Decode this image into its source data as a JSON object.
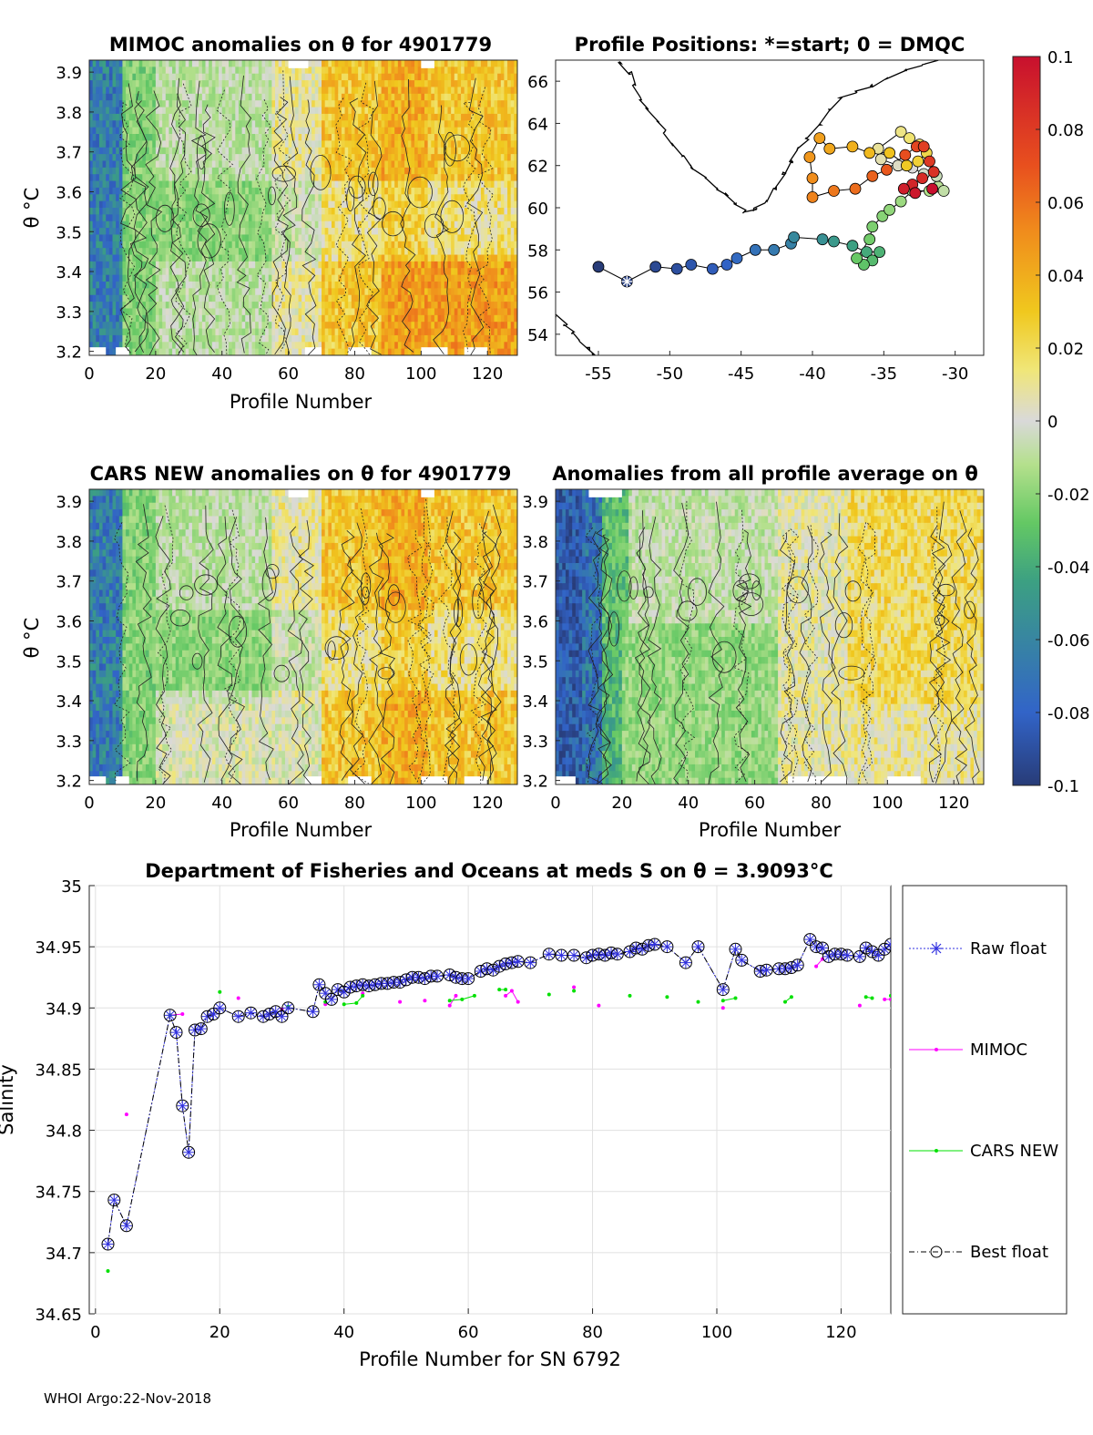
{
  "footer": "WHOI Argo:22-Nov-2018",
  "colormap_ticks": [
    "0.1",
    "0.08",
    "0.06",
    "0.04",
    "0.02",
    "0",
    "-0.02",
    "-0.04",
    "-0.06",
    "-0.08",
    "-0.1"
  ],
  "colors": {
    "high": "#c8102e",
    "orange": "#f08c1c",
    "yellow": "#f0c81e",
    "gray": "#d9d9d9",
    "green": "#64c864",
    "blue": "#3264c8",
    "deep": "#283c78"
  },
  "chart_data": [
    {
      "id": "mimoc_anom",
      "type": "heatmap",
      "title": "MIMOC anomalies on θ  for 4901779",
      "xlabel": "Profile Number",
      "ylabel": "θ °C",
      "xticks": [
        "0",
        "20",
        "40",
        "60",
        "80",
        "100",
        "120"
      ],
      "yticks": [
        "3.2",
        "3.3",
        "3.4",
        "3.5",
        "3.6",
        "3.7",
        "3.8",
        "3.9"
      ],
      "xlim": [
        0,
        129
      ],
      "ylim": [
        3.19,
        3.93
      ],
      "clim": [
        -0.1,
        0.1
      ]
    },
    {
      "id": "positions",
      "type": "scatter",
      "title": "Profile Positions: *=start; 0 = DMQC",
      "xticks": [
        "-55",
        "-50",
        "-45",
        "-40",
        "-35",
        "-30"
      ],
      "yticks": [
        "54",
        "56",
        "58",
        "60",
        "62",
        "64",
        "66"
      ],
      "xlim": [
        -58,
        -28
      ],
      "ylim": [
        53,
        67
      ],
      "track": [
        [
          -55,
          57.2
        ],
        [
          -53,
          56.5
        ],
        [
          -51,
          57.2
        ],
        [
          -49.5,
          57.1
        ],
        [
          -48.5,
          57.3
        ],
        [
          -47,
          57.1
        ],
        [
          -46,
          57.3
        ],
        [
          -45.3,
          57.6
        ],
        [
          -44,
          58.0
        ],
        [
          -42.7,
          58.0
        ],
        [
          -41.5,
          58.3
        ],
        [
          -41.3,
          58.6
        ],
        [
          -39.3,
          58.5
        ],
        [
          -38.5,
          58.4
        ],
        [
          -37.2,
          58.2
        ],
        [
          -36.2,
          57.9
        ],
        [
          -35.3,
          57.9
        ],
        [
          -35.8,
          57.5
        ],
        [
          -36.4,
          57.3
        ],
        [
          -36.9,
          57.6
        ],
        [
          -36.0,
          58.5
        ],
        [
          -35.8,
          59.1
        ],
        [
          -35.1,
          59.6
        ],
        [
          -34.6,
          59.9
        ],
        [
          -33.8,
          60.3
        ],
        [
          -33.0,
          60.8
        ],
        [
          -31.8,
          60.8
        ],
        [
          -31.2,
          61.0
        ],
        [
          -30.8,
          60.8
        ],
        [
          -31.3,
          61.5
        ],
        [
          -32.2,
          61.6
        ],
        [
          -33.0,
          61.9
        ],
        [
          -34.0,
          62.0
        ],
        [
          -35.2,
          62.3
        ],
        [
          -35.4,
          62.8
        ],
        [
          -33.8,
          63.6
        ],
        [
          -33.2,
          63.3
        ],
        [
          -32.5,
          63.0
        ],
        [
          -32.0,
          62.6
        ],
        [
          -32.6,
          62.2
        ],
        [
          -33.4,
          62.0
        ],
        [
          -34.6,
          62.6
        ],
        [
          -36.0,
          62.6
        ],
        [
          -37.2,
          62.9
        ],
        [
          -38.8,
          62.8
        ],
        [
          -39.5,
          63.3
        ],
        [
          -40.2,
          62.4
        ],
        [
          -40.0,
          61.4
        ],
        [
          -40.0,
          60.5
        ],
        [
          -38.5,
          60.8
        ],
        [
          -37.0,
          60.9
        ],
        [
          -35.8,
          61.5
        ],
        [
          -34.8,
          61.8
        ],
        [
          -33.5,
          62.5
        ],
        [
          -32.7,
          62.9
        ],
        [
          -32.2,
          62.9
        ],
        [
          -31.8,
          62.2
        ],
        [
          -31.5,
          61.7
        ],
        [
          -32.3,
          61.4
        ],
        [
          -33.0,
          61.1
        ],
        [
          -33.6,
          60.9
        ],
        [
          -32.8,
          60.7
        ],
        [
          -31.6,
          60.9
        ]
      ],
      "greenland_coast": [
        [
          -53.5,
          66.9
        ],
        [
          -52.8,
          66.4
        ],
        [
          -52.5,
          65.8
        ],
        [
          -52.0,
          65.2
        ],
        [
          -51.6,
          64.7
        ],
        [
          -50.8,
          64.1
        ],
        [
          -50.4,
          63.6
        ],
        [
          -49.8,
          63.0
        ],
        [
          -49.0,
          62.4
        ],
        [
          -48.4,
          61.9
        ],
        [
          -47.5,
          61.4
        ],
        [
          -46.7,
          60.9
        ],
        [
          -46.0,
          60.6
        ],
        [
          -45.4,
          60.2
        ],
        [
          -44.8,
          59.8
        ],
        [
          -44.0,
          59.9
        ],
        [
          -43.3,
          60.3
        ],
        [
          -42.6,
          60.9
        ],
        [
          -42.0,
          61.6
        ],
        [
          -41.5,
          62.2
        ],
        [
          -41.0,
          62.8
        ],
        [
          -40.4,
          63.3
        ],
        [
          -39.5,
          64.0
        ],
        [
          -38.8,
          64.6
        ],
        [
          -38.0,
          65.2
        ],
        [
          -37.0,
          65.5
        ],
        [
          -35.8,
          65.8
        ],
        [
          -34.8,
          66.1
        ],
        [
          -33.5,
          66.5
        ],
        [
          -32.2,
          66.8
        ],
        [
          -31.3,
          67.0
        ]
      ],
      "labrador_coast": [
        [
          -58,
          54.9
        ],
        [
          -57.3,
          54.5
        ],
        [
          -56.8,
          54.1
        ],
        [
          -56.3,
          53.7
        ],
        [
          -55.7,
          53.3
        ],
        [
          -55.3,
          53.0
        ]
      ]
    },
    {
      "id": "cars_anom",
      "type": "heatmap",
      "title": "CARS NEW anomalies on θ for 4901779",
      "xlabel": "Profile Number",
      "ylabel": "θ °C",
      "xticks": [
        "0",
        "20",
        "40",
        "60",
        "80",
        "100",
        "120"
      ],
      "yticks": [
        "3.2",
        "3.3",
        "3.4",
        "3.5",
        "3.6",
        "3.7",
        "3.8",
        "3.9"
      ],
      "xlim": [
        0,
        129
      ],
      "ylim": [
        3.19,
        3.93
      ],
      "clim": [
        -0.1,
        0.1
      ]
    },
    {
      "id": "avg_anom",
      "type": "heatmap",
      "title": "Anomalies from all profile average on θ",
      "xlabel": "Profile Number",
      "xticks": [
        "0",
        "20",
        "40",
        "60",
        "80",
        "100",
        "120"
      ],
      "yticks": [
        "3.2",
        "3.3",
        "3.4",
        "3.5",
        "3.6",
        "3.7",
        "3.8",
        "3.9"
      ],
      "xlim": [
        0,
        129
      ],
      "ylim": [
        3.19,
        3.93
      ],
      "clim": [
        -0.1,
        0.1
      ]
    },
    {
      "id": "salinity",
      "type": "line",
      "title": "Department of Fisheries and Oceans at meds S on θ = 3.9093°C",
      "xlabel": "Profile Number for SN 6792",
      "ylabel": "Salinity",
      "xticks": [
        "0",
        "20",
        "40",
        "60",
        "80",
        "100",
        "120"
      ],
      "yticks": [
        "34.65",
        "34.7",
        "34.75",
        "34.8",
        "34.85",
        "34.9",
        "34.95",
        "35"
      ],
      "xlim": [
        -1,
        128
      ],
      "ylim": [
        34.65,
        35.0
      ],
      "legend": [
        "Raw float",
        "MIMOC",
        "CARS NEW",
        "Best float"
      ],
      "series": [
        {
          "name": "Best float",
          "points": [
            [
              2,
              34.707
            ],
            [
              3,
              34.743
            ],
            [
              5,
              34.722
            ],
            [
              12,
              34.894
            ],
            [
              13,
              34.88
            ],
            [
              14,
              34.82
            ],
            [
              15,
              34.782
            ],
            [
              16,
              34.882
            ],
            [
              17,
              34.883
            ],
            [
              18,
              34.893
            ],
            [
              19,
              34.895
            ],
            [
              20,
              34.9
            ],
            [
              23,
              34.893
            ],
            [
              25,
              34.896
            ],
            [
              27,
              34.893
            ],
            [
              28,
              34.895
            ],
            [
              29,
              34.897
            ],
            [
              30,
              34.893
            ],
            [
              31,
              34.9
            ],
            [
              35,
              34.897
            ],
            [
              36,
              34.919
            ],
            [
              37,
              34.912
            ],
            [
              38,
              34.907
            ],
            [
              39,
              34.915
            ],
            [
              40,
              34.913
            ],
            [
              41,
              34.917
            ],
            [
              42,
              34.918
            ],
            [
              43,
              34.919
            ],
            [
              44,
              34.918
            ],
            [
              45,
              34.919
            ],
            [
              46,
              34.92
            ],
            [
              47,
              34.92
            ],
            [
              48,
              34.921
            ],
            [
              49,
              34.921
            ],
            [
              50,
              34.923
            ],
            [
              51,
              34.925
            ],
            [
              52,
              34.925
            ],
            [
              53,
              34.924
            ],
            [
              54,
              34.926
            ],
            [
              55,
              34.926
            ],
            [
              57,
              34.927
            ],
            [
              58,
              34.925
            ],
            [
              59,
              34.924
            ],
            [
              60,
              34.924
            ],
            [
              62,
              34.93
            ],
            [
              63,
              34.932
            ],
            [
              64,
              34.931
            ],
            [
              65,
              34.934
            ],
            [
              66,
              34.936
            ],
            [
              67,
              34.937
            ],
            [
              68,
              34.938
            ],
            [
              70,
              34.937
            ],
            [
              73,
              34.944
            ],
            [
              75,
              34.943
            ],
            [
              77,
              34.943
            ],
            [
              79,
              34.941
            ],
            [
              80,
              34.943
            ],
            [
              81,
              34.944
            ],
            [
              82,
              34.943
            ],
            [
              83,
              34.945
            ],
            [
              84,
              34.944
            ],
            [
              86,
              34.946
            ],
            [
              87,
              34.949
            ],
            [
              88,
              34.948
            ],
            [
              89,
              34.951
            ],
            [
              90,
              34.952
            ],
            [
              92,
              34.95
            ],
            [
              95,
              34.937
            ],
            [
              97,
              34.95
            ],
            [
              101,
              34.915
            ],
            [
              103,
              34.948
            ],
            [
              104,
              34.939
            ],
            [
              107,
              34.93
            ],
            [
              108,
              34.931
            ],
            [
              110,
              34.932
            ],
            [
              111,
              34.932
            ],
            [
              112,
              34.933
            ],
            [
              113,
              34.935
            ],
            [
              115,
              34.956
            ],
            [
              116,
              34.95
            ],
            [
              117,
              34.949
            ],
            [
              118,
              34.942
            ],
            [
              119,
              34.944
            ],
            [
              120,
              34.944
            ],
            [
              121,
              34.943
            ],
            [
              123,
              34.942
            ],
            [
              124,
              34.949
            ],
            [
              125,
              34.946
            ],
            [
              126,
              34.943
            ],
            [
              127,
              34.948
            ],
            [
              128,
              34.952
            ]
          ]
        },
        {
          "name": "MIMOC",
          "points": [
            [
              5,
              34.813
            ],
            [
              12,
              34.894
            ],
            [
              14,
              34.895
            ],
            [
              23,
              34.908
            ],
            [
              30,
              34.899
            ],
            [
              37,
              34.903
            ],
            [
              43,
              34.912
            ],
            [
              49,
              34.905
            ],
            [
              53,
              34.906
            ],
            [
              57,
              34.902
            ],
            [
              58,
              34.91
            ],
            [
              66,
              34.91
            ],
            [
              67,
              34.914
            ],
            [
              68,
              34.905
            ],
            [
              77,
              34.917
            ],
            [
              81,
              34.902
            ],
            [
              101,
              34.9
            ],
            [
              116,
              34.934
            ],
            [
              117,
              34.94
            ],
            [
              123,
              34.902
            ],
            [
              127,
              34.907
            ],
            [
              128,
              34.907
            ]
          ]
        },
        {
          "name": "CARS NEW",
          "points": [
            [
              2,
              34.685
            ],
            [
              12,
              34.894
            ],
            [
              20,
              34.913
            ],
            [
              31,
              34.901
            ],
            [
              37,
              34.905
            ],
            [
              40,
              34.903
            ],
            [
              42,
              34.904
            ],
            [
              43,
              34.91
            ],
            [
              57,
              34.906
            ],
            [
              59,
              34.907
            ],
            [
              61,
              34.91
            ],
            [
              65,
              34.915
            ],
            [
              66,
              34.915
            ],
            [
              73,
              34.911
            ],
            [
              77,
              34.914
            ],
            [
              86,
              34.91
            ],
            [
              92,
              34.909
            ],
            [
              97,
              34.905
            ],
            [
              101,
              34.906
            ],
            [
              103,
              34.908
            ],
            [
              111,
              34.905
            ],
            [
              112,
              34.909
            ],
            [
              124,
              34.909
            ],
            [
              125,
              34.908
            ],
            [
              128,
              34.91
            ]
          ]
        }
      ]
    }
  ]
}
